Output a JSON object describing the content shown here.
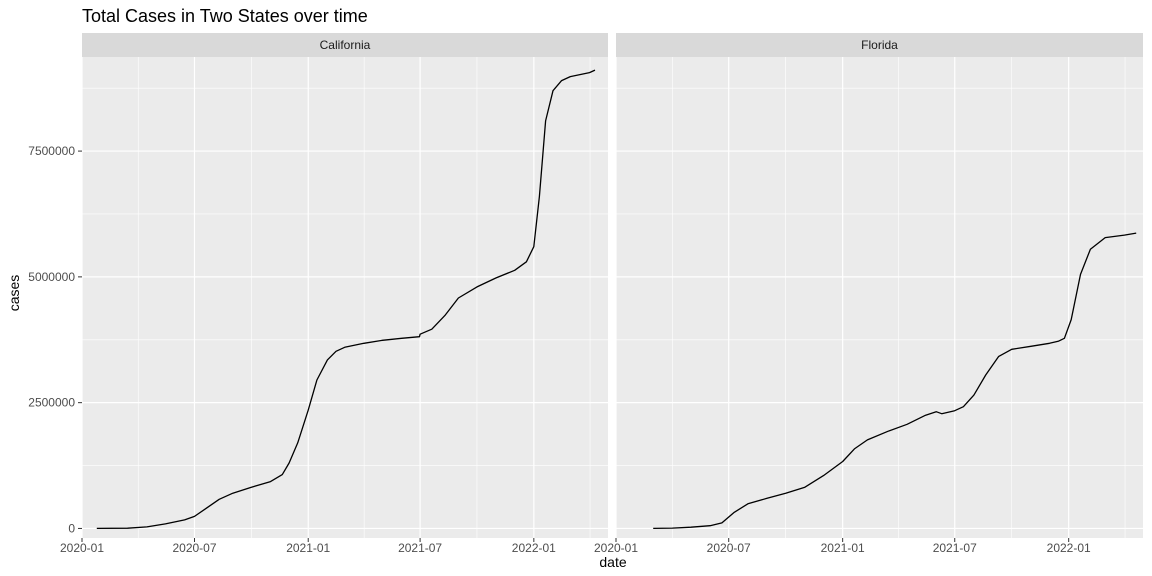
{
  "chart_data": {
    "type": "line",
    "title": "Total Cases in Two States over time",
    "xlabel": "date",
    "ylabel": "cases",
    "ylim": [
      -190000,
      9370000
    ],
    "xlim": [
      "2020-01-01",
      "2022-05-01"
    ],
    "y_ticks": [
      0,
      2500000,
      5000000,
      7500000
    ],
    "y_tick_labels": [
      "0",
      "2500000",
      "5000000",
      "7500000"
    ],
    "x_ticks": [
      "2020-01-01",
      "2020-07-01",
      "2021-01-01",
      "2021-07-01",
      "2022-01-01"
    ],
    "x_tick_labels": [
      "2020-01",
      "2020-07",
      "2021-01",
      "2021-07",
      "2022-01"
    ],
    "grid": true,
    "line_color": "#000000",
    "panel_background": "#ebebeb",
    "strip_background": "#d9d9d9",
    "facets": [
      {
        "name": "California",
        "series": [
          {
            "x": [
              "2020-01-25",
              "2020-03-15",
              "2020-04-15",
              "2020-05-15",
              "2020-06-15",
              "2020-07-01",
              "2020-07-20",
              "2020-08-10",
              "2020-09-01",
              "2020-10-01",
              "2020-11-01",
              "2020-11-20",
              "2020-12-01",
              "2020-12-15",
              "2021-01-01",
              "2021-01-15",
              "2021-02-01",
              "2021-02-15",
              "2021-03-01",
              "2021-04-01",
              "2021-05-01",
              "2021-06-01",
              "2021-06-30",
              "2021-07-01",
              "2021-07-20",
              "2021-08-10",
              "2021-09-01",
              "2021-10-01",
              "2021-11-01",
              "2021-12-01",
              "2021-12-20",
              "2022-01-01",
              "2022-01-10",
              "2022-01-20",
              "2022-02-01",
              "2022-02-15",
              "2022-03-01",
              "2022-04-01",
              "2022-04-10"
            ],
            "y": [
              0,
              5000,
              30000,
              90000,
              170000,
              240000,
              400000,
              580000,
              700000,
              820000,
              930000,
              1070000,
              1300000,
              1700000,
              2350000,
              2950000,
              3350000,
              3520000,
              3600000,
              3680000,
              3740000,
              3780000,
              3810000,
              3860000,
              3960000,
              4230000,
              4580000,
              4800000,
              4980000,
              5130000,
              5300000,
              5600000,
              6600000,
              8100000,
              8700000,
              8900000,
              8980000,
              9060000,
              9110000
            ]
          }
        ]
      },
      {
        "name": "Florida",
        "series": [
          {
            "x": [
              "2020-03-01",
              "2020-04-01",
              "2020-05-01",
              "2020-06-01",
              "2020-06-20",
              "2020-07-10",
              "2020-08-01",
              "2020-09-01",
              "2020-10-01",
              "2020-11-01",
              "2020-12-01",
              "2021-01-01",
              "2021-01-20",
              "2021-02-10",
              "2021-03-15",
              "2021-04-15",
              "2021-05-15",
              "2021-06-01",
              "2021-06-10",
              "2021-07-01",
              "2021-07-15",
              "2021-08-01",
              "2021-08-20",
              "2021-09-10",
              "2021-10-01",
              "2021-11-01",
              "2021-12-01",
              "2021-12-15",
              "2021-12-25",
              "2022-01-05",
              "2022-01-20",
              "2022-02-05",
              "2022-03-01",
              "2022-04-01",
              "2022-04-20"
            ],
            "y": [
              0,
              7000,
              25000,
              55000,
              110000,
              320000,
              490000,
              600000,
              700000,
              820000,
              1050000,
              1330000,
              1580000,
              1760000,
              1930000,
              2070000,
              2250000,
              2320000,
              2280000,
              2340000,
              2420000,
              2650000,
              3050000,
              3420000,
              3560000,
              3620000,
              3680000,
              3720000,
              3780000,
              4150000,
              5050000,
              5550000,
              5780000,
              5830000,
              5870000
            ]
          }
        ]
      }
    ]
  }
}
